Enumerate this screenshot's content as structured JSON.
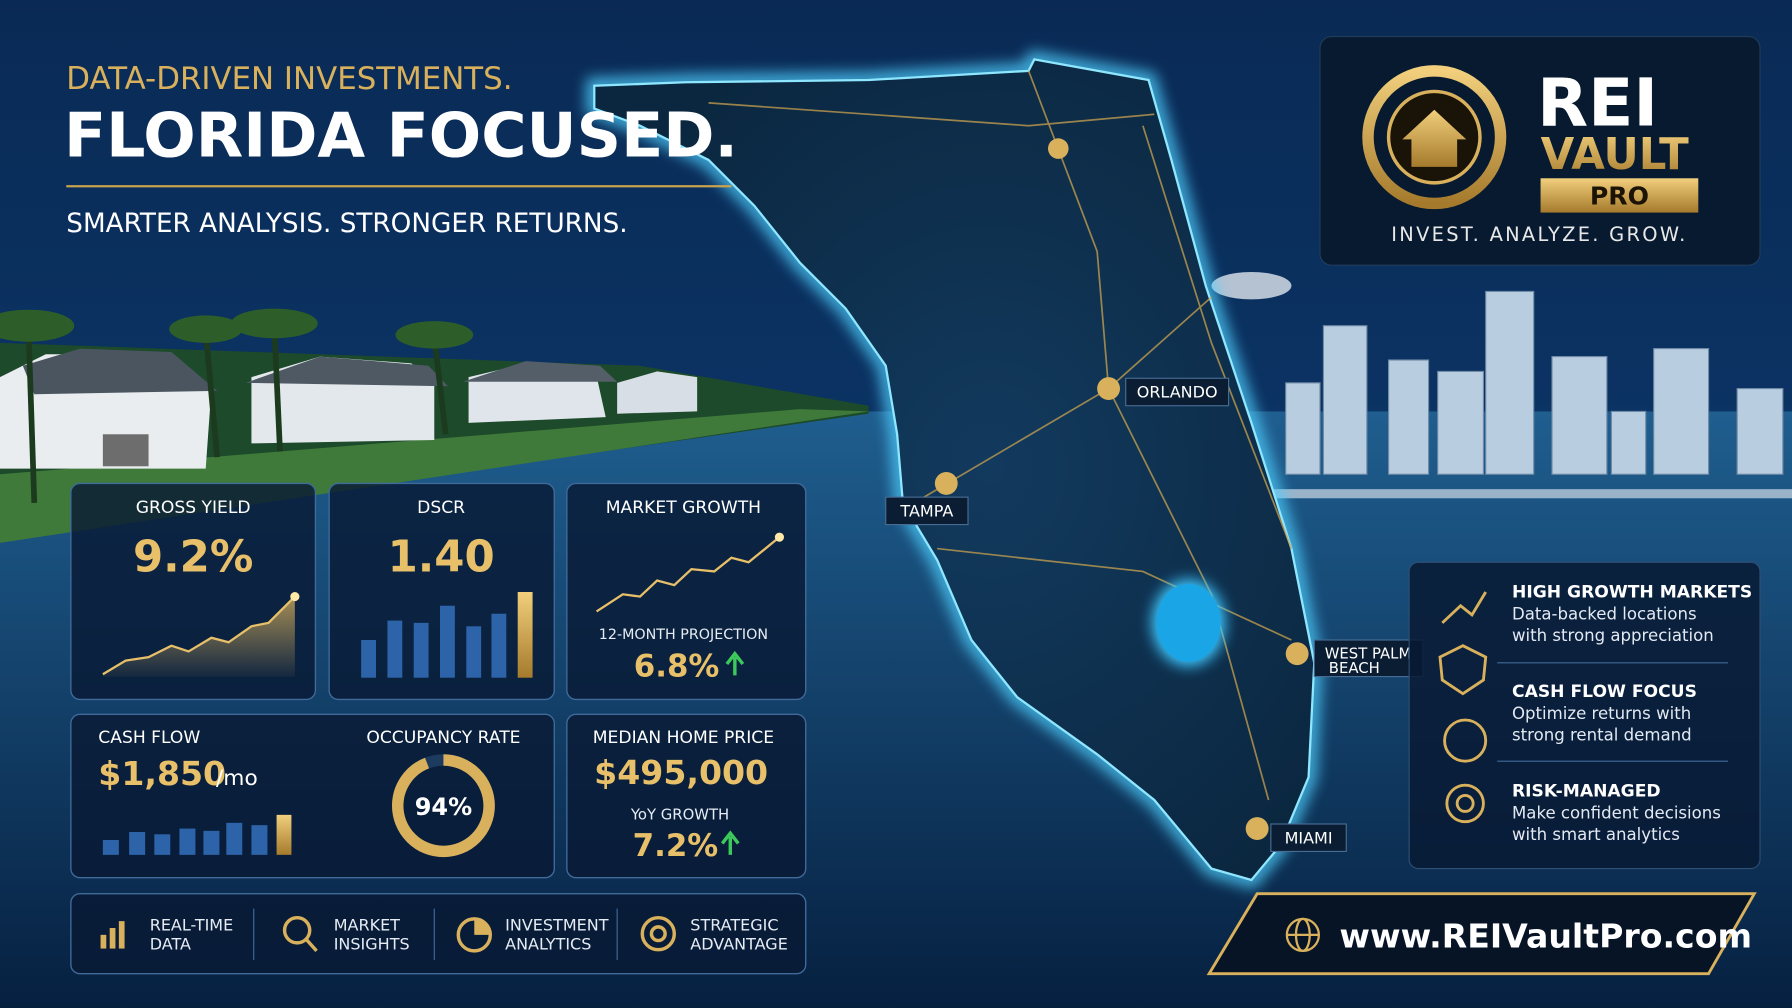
{
  "header": {
    "kicker": "DATA-DRIVEN INVESTMENTS.",
    "headline": "FLORIDA FOCUSED.",
    "tagline": "SMARTER ANALYSIS.  STRONGER RETURNS."
  },
  "logo": {
    "name_1": "REI",
    "name_2": "VAULT",
    "name_3": "PRO",
    "slogan": "INVEST. ANALYZE. GROW."
  },
  "metrics": {
    "gross_yield": {
      "label": "GROSS YIELD",
      "value": "9.2%"
    },
    "dscr": {
      "label": "DSCR",
      "value": "1.40"
    },
    "market_growth": {
      "label": "MARKET GROWTH",
      "sublabel": "12-MONTH PROJECTION",
      "value": "6.8%"
    },
    "cash_flow": {
      "label": "CASH FLOW",
      "value": "$1,850",
      "unit": "/mo"
    },
    "occupancy": {
      "label": "OCCUPANCY RATE",
      "value": "94%",
      "ring": 94
    },
    "median_price": {
      "label": "MEDIAN HOME PRICE",
      "value": "$495,000",
      "sublabel": "YoY GROWTH",
      "sub_value": "7.2%"
    }
  },
  "features": [
    {
      "line_1": "REAL-TIME",
      "line_2": "DATA"
    },
    {
      "line_1": "MARKET",
      "line_2": "INSIGHTS"
    },
    {
      "line_1": "INVESTMENT",
      "line_2": "ANALYTICS"
    },
    {
      "line_1": "STRATEGIC",
      "line_2": "ADVANTAGE"
    }
  ],
  "highlights": [
    {
      "title": "HIGH GROWTH MARKETS",
      "text_1": "Data-backed locations",
      "text_2": "with strong appreciation"
    },
    {
      "title": "CASH FLOW FOCUS",
      "text_1": "Optimize returns with",
      "text_2": "strong rental demand"
    },
    {
      "title": "RISK-MANAGED",
      "text_1": "Make confident decisions",
      "text_2": "with smart analytics"
    }
  ],
  "map": {
    "orlando": "ORLANDO",
    "tampa": "TAMPA",
    "west_palm_1": "WEST PALM",
    "west_palm_2": "BEACH",
    "miami": "MIAMI"
  },
  "url": "www.REIVaultPro.com"
}
